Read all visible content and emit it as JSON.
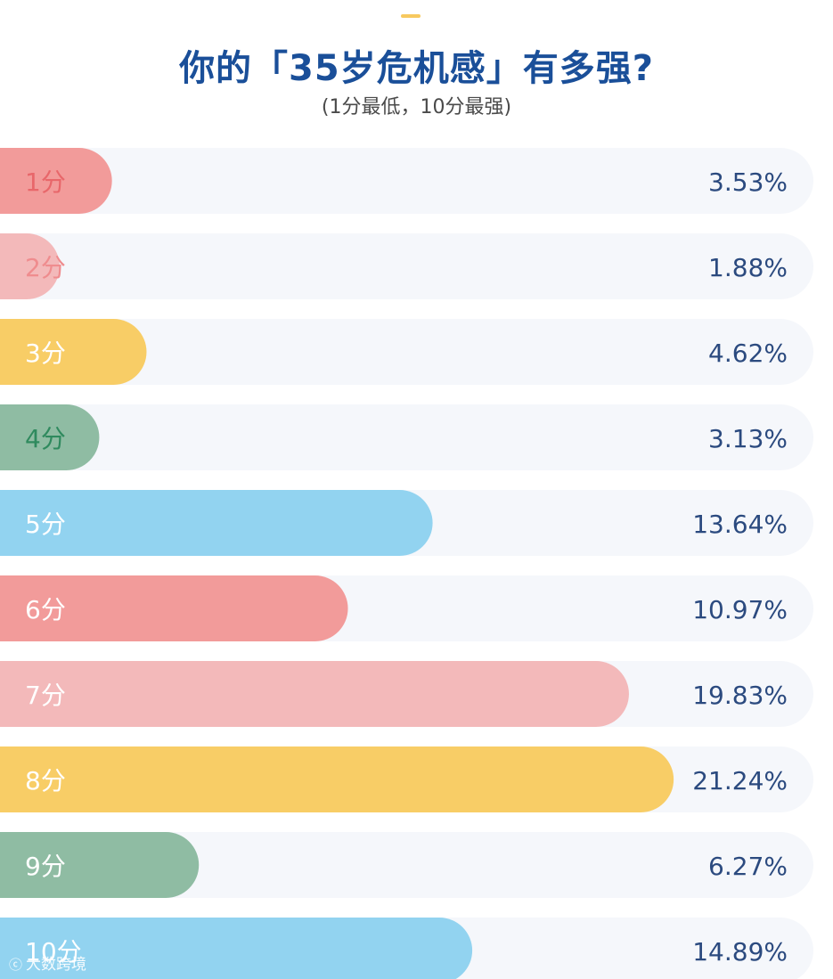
{
  "header": {
    "title": "你的「35岁危机感」有多强?",
    "subtitle": "(1分最低，10分最强)"
  },
  "watermark": {
    "icon": "logo-icon",
    "text": "大数跨境"
  },
  "colors": {
    "track": "#f5f7fb",
    "title": "#1a4f99",
    "value": "#2b4a7f"
  },
  "chart_data": {
    "type": "bar",
    "orientation": "horizontal",
    "title": "你的「35岁危机感」有多强?",
    "subtitle": "(1分最低，10分最强)",
    "xlabel": "",
    "ylabel": "",
    "xlim": [
      0,
      25
    ],
    "unit": "%",
    "grid": false,
    "categories": [
      "1分",
      "2分",
      "3分",
      "4分",
      "5分",
      "6分",
      "7分",
      "8分",
      "9分",
      "10分"
    ],
    "values": [
      3.53,
      1.88,
      4.62,
      3.13,
      13.64,
      10.97,
      19.83,
      21.24,
      6.27,
      14.89
    ],
    "value_labels": [
      "3.53%",
      "1.88%",
      "4.62%",
      "3.13%",
      "13.64%",
      "10.97%",
      "19.83%",
      "21.24%",
      "6.27%",
      "14.89%"
    ],
    "bar_colors": [
      "#f29b9a",
      "#f3b9ba",
      "#f8cd66",
      "#8fbca3",
      "#92d3f0",
      "#f29b9a",
      "#f3b9ba",
      "#f8cd66",
      "#8fbca3",
      "#92d3f0"
    ],
    "label_colors": [
      "#e8676a",
      "#ef8c8e",
      "#ffffff",
      "#2f8a5e",
      "#ffffff",
      "#ffffff",
      "#ffffff",
      "#ffffff",
      "#ffffff",
      "#ffffff"
    ]
  }
}
